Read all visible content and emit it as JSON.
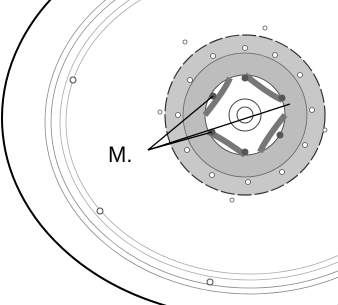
{
  "callout": {
    "label": "M."
  }
}
